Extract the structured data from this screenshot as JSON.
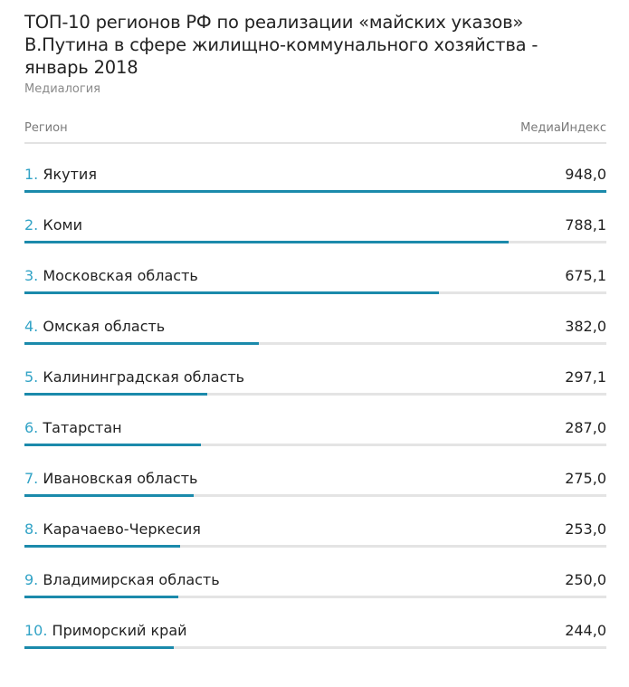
{
  "title_line1": "ТОП-10 регионов РФ по реализации «майских указов»",
  "title_line2": "В.Путина в сфере жилищно-коммунального хозяйства -",
  "title_line3": "январь 2018",
  "source": "Медиалогия",
  "header": {
    "region": "Регион",
    "metric": "МедиаИндекс"
  },
  "colors": {
    "accent": "#32a3c6",
    "bar": "#1b8aab",
    "track": "#e4e4e4"
  },
  "chart_data": {
    "type": "bar",
    "title": "ТОП-10 регионов РФ по реализации «майских указов» В.Путина в сфере жилищно-коммунального хозяйства - январь 2018",
    "xlabel": "Регион",
    "ylabel": "МедиаИндекс",
    "ylim": [
      0,
      948.0
    ],
    "ranks": [
      "1.",
      "2.",
      "3.",
      "4.",
      "5.",
      "6.",
      "7.",
      "8.",
      "9.",
      "10."
    ],
    "categories": [
      "Якутия",
      "Коми",
      "Московская область",
      "Омская область",
      "Калининградская область",
      "Татарстан",
      "Ивановская область",
      "Карачаево-Черкесия",
      "Владимирская область",
      "Приморский край"
    ],
    "values": [
      948.0,
      788.1,
      675.1,
      382.0,
      297.1,
      287.0,
      275.0,
      253.0,
      250.0,
      244.0
    ],
    "value_labels": [
      "948,0",
      "788,1",
      "675,1",
      "382,0",
      "297,1",
      "287,0",
      "275,0",
      "253,0",
      "250,0",
      "244,0"
    ]
  }
}
